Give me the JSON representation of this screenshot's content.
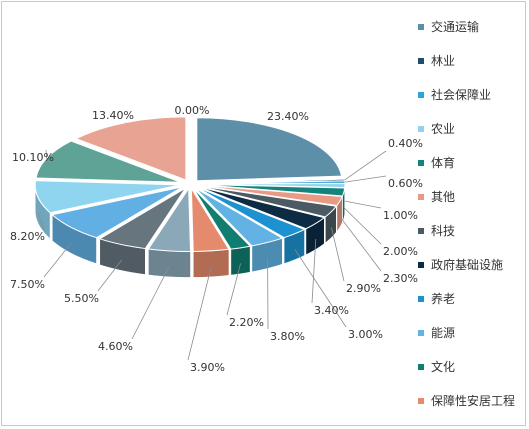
{
  "chart_data": {
    "type": "pie",
    "style": "3d-exploded",
    "legend_position": "right",
    "slices": [
      {
        "name": "交通运输",
        "value": 23.4,
        "label": "23.40%",
        "color": "#5e8fa8"
      },
      {
        "name": "林业",
        "value": 0.4,
        "label": "0.40%",
        "color": "#1e4d70"
      },
      {
        "name": "社会保障业",
        "value": 0.6,
        "label": "0.60%",
        "color": "#2ea3d8"
      },
      {
        "name": "农业",
        "value": 1.0,
        "label": "1.00%",
        "color": "#8fd3ec"
      },
      {
        "name": "体育",
        "value": 2.0,
        "label": "2.00%",
        "color": "#13837c"
      },
      {
        "name": "其他",
        "value": 2.3,
        "label": "2.30%",
        "color": "#e99a84"
      },
      {
        "name": "科技",
        "value": 2.9,
        "label": "2.90%",
        "color": "#4b5a63"
      },
      {
        "name": "政府基础设施",
        "value": 3.4,
        "label": "3.40%",
        "color": "#0d2c44"
      },
      {
        "name": "养老",
        "value": 3.0,
        "label": "3.00%",
        "color": "#1e92d0"
      },
      {
        "name": "能源",
        "value": 3.8,
        "label": "3.80%",
        "color": "#62b3e3"
      },
      {
        "name": "文化",
        "value": 2.2,
        "label": "2.20%",
        "color": "#0f7d6f"
      },
      {
        "name": "保障性安居工程",
        "value": 3.9,
        "label": "3.90%",
        "color": "#e58a6c"
      },
      {
        "name": "",
        "value": 4.6,
        "label": "4.60%",
        "color": "#8ba8b9"
      },
      {
        "name": "",
        "value": 5.5,
        "label": "5.50%",
        "color": "#67757f"
      },
      {
        "name": "",
        "value": 7.5,
        "label": "7.50%",
        "color": "#61afe3"
      },
      {
        "name": "",
        "value": 8.2,
        "label": "8.20%",
        "color": "#8fd5f0"
      },
      {
        "name": "",
        "value": 10.1,
        "label": "10.10%",
        "color": "#5ea396"
      },
      {
        "name": "",
        "value": 13.4,
        "label": "13.40%",
        "color": "#e9a393"
      },
      {
        "name": "",
        "value": 0.0,
        "label": "0.00%",
        "color": "#5e8fa8"
      }
    ]
  }
}
